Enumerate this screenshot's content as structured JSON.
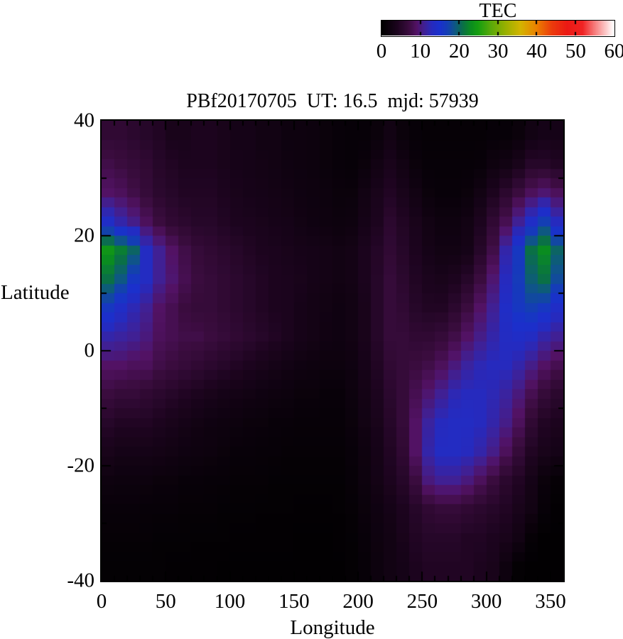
{
  "figure": {
    "title": "PBf20170705  UT: 16.5  mjd: 57939",
    "colorbar": {
      "title": "TEC",
      "min": 0,
      "max": 60,
      "tick_labels": [
        "0",
        "10",
        "20",
        "30",
        "40",
        "50",
        "60"
      ],
      "notch_values": [
        10,
        20,
        30,
        40,
        50
      ]
    },
    "x_axis": {
      "label": "Longitude",
      "min": 0,
      "max": 360,
      "major_ticks": [
        0,
        50,
        100,
        150,
        200,
        250,
        300,
        350
      ],
      "minor_step": 10
    },
    "y_axis": {
      "label": "Latitude",
      "min": -40,
      "max": 40,
      "major_ticks": [
        40,
        20,
        0,
        -20,
        -40
      ],
      "minor_step": 10
    }
  },
  "chart_data": {
    "type": "heatmap",
    "title": "PBf20170705  UT: 16.5  mjd: 57939",
    "xlabel": "Longitude",
    "ylabel": "Latitude",
    "colorbar_label": "TEC",
    "x_range": [
      0,
      360
    ],
    "y_range": [
      -40,
      40
    ],
    "value_range": [
      0,
      60
    ],
    "lon_cell_deg": 10,
    "lat_cell_deg": 5,
    "lon_col_centers": [
      5,
      15,
      25,
      35,
      45,
      55,
      65,
      75,
      85,
      95,
      105,
      115,
      125,
      135,
      145,
      155,
      165,
      175,
      185,
      195,
      205,
      215,
      225,
      235,
      245,
      255,
      265,
      275,
      285,
      295,
      305,
      315,
      325,
      335,
      345,
      355
    ],
    "lat_row_centers_top_to_bottom": [
      37.5,
      32.5,
      27.5,
      22.5,
      17.5,
      12.5,
      7.5,
      2.5,
      -2.5,
      -7.5,
      -12.5,
      -17.5,
      -22.5,
      -27.5,
      -32.5,
      -37.5
    ],
    "tec_grid_rows_top_to_bottom": [
      [
        6,
        6,
        5.5,
        5,
        4.5,
        3.5,
        3.5,
        4,
        4,
        3.5,
        3,
        3,
        2.5,
        2.5,
        2,
        2,
        1.8,
        1.5,
        1.2,
        1,
        1,
        1.5,
        2.5,
        1.5,
        1,
        0.8,
        0.8,
        0.8,
        0.8,
        0.8,
        1,
        1,
        1.5,
        2.5,
        3,
        3
      ],
      [
        7.5,
        7,
        6.5,
        6,
        5,
        4.5,
        4,
        4,
        4,
        3.5,
        3.2,
        3,
        2.8,
        2.5,
        2.2,
        2,
        1.8,
        1.5,
        1.2,
        1,
        1.5,
        2.5,
        3.5,
        2.5,
        1.5,
        1,
        1,
        1,
        1,
        1.2,
        2,
        2.5,
        3.5,
        5,
        5,
        4.5
      ],
      [
        9,
        8.5,
        7.5,
        6.5,
        5.5,
        5,
        4.5,
        4.5,
        4.5,
        4,
        3.5,
        3.2,
        3,
        2.8,
        2.5,
        2.2,
        2,
        1.8,
        1.5,
        1.5,
        2.5,
        3.5,
        4.5,
        3.5,
        2.5,
        1.5,
        1.2,
        1.2,
        1.5,
        2.5,
        4,
        5.5,
        7,
        8.5,
        9.5,
        8.5
      ],
      [
        14,
        12,
        10.5,
        8.5,
        7,
        6,
        5.5,
        5,
        5,
        4.5,
        4,
        3.8,
        3.5,
        3.2,
        3,
        2.5,
        2.2,
        2,
        1.8,
        2,
        3,
        4,
        5.5,
        4.5,
        3.5,
        2.5,
        2,
        2,
        2.5,
        4,
        6,
        8,
        11,
        14,
        17,
        13
      ],
      [
        24,
        22,
        20,
        13.5,
        11,
        9,
        7.5,
        6.5,
        6,
        5.5,
        5,
        4.5,
        4,
        3.8,
        3.5,
        3.2,
        3,
        2.8,
        2.5,
        2.8,
        3.8,
        4.8,
        6,
        5,
        4,
        3,
        2.5,
        2.5,
        3,
        5,
        7.5,
        12,
        16,
        21,
        23,
        20
      ],
      [
        21,
        19,
        16,
        13.5,
        11,
        9.5,
        8,
        7,
        6.5,
        6,
        5.5,
        5,
        4.5,
        4,
        3.8,
        3.5,
        3,
        2.8,
        2.5,
        2.8,
        3.8,
        5,
        6.5,
        5.5,
        4.5,
        3.8,
        3.5,
        4,
        5,
        7,
        9.5,
        13,
        16.5,
        19.5,
        21,
        18
      ],
      [
        16,
        14,
        12.5,
        11,
        9,
        8,
        7,
        6.5,
        6.5,
        6,
        5.5,
        5,
        4.5,
        4,
        3.8,
        3.2,
        2.8,
        2.5,
        2.2,
        2.5,
        3.5,
        5,
        6.5,
        6,
        5,
        4.5,
        4.5,
        5.5,
        7,
        9,
        11,
        14,
        16,
        17,
        16,
        14
      ],
      [
        12,
        11.5,
        11,
        10,
        8.5,
        8,
        7.5,
        7.5,
        7,
        6.5,
        6,
        5.5,
        5,
        4.5,
        3.8,
        3.2,
        2.8,
        2.4,
        2.2,
        2.5,
        3.5,
        5,
        6.5,
        6.5,
        6,
        6,
        6.5,
        7.5,
        9,
        10.5,
        12,
        13.5,
        14,
        13.5,
        12,
        11
      ],
      [
        9,
        9,
        8.5,
        8.5,
        7.5,
        7,
        6.5,
        6,
        5.5,
        5,
        4.5,
        4,
        3.5,
        3,
        2.6,
        2.2,
        2,
        1.8,
        1.8,
        2.2,
        3.2,
        4.5,
        6,
        6.5,
        7,
        7.5,
        8.5,
        10,
        11.5,
        12.5,
        13,
        13,
        12,
        10.5,
        9,
        8
      ],
      [
        7,
        6.5,
        6.5,
        6,
        5.5,
        5,
        4.5,
        4,
        3.5,
        3,
        2.8,
        2.5,
        2.2,
        2,
        1.8,
        1.5,
        1.5,
        1.2,
        1.2,
        1.8,
        2.8,
        4,
        5.5,
        6.5,
        8,
        9.5,
        11,
        12.5,
        13,
        13,
        12.5,
        11.5,
        10,
        8,
        6.5,
        5.5
      ],
      [
        5,
        4.5,
        4.5,
        4.5,
        4,
        3.5,
        3,
        2.5,
        2.2,
        2,
        1.8,
        1.5,
        1.5,
        1.2,
        1.2,
        1,
        1,
        1,
        1,
        1.5,
        2.5,
        3.5,
        5,
        6.5,
        9,
        11.5,
        13,
        13.5,
        13.5,
        13,
        12,
        10.5,
        8.5,
        6,
        4.5,
        4
      ],
      [
        3.5,
        3,
        3,
        3,
        2.8,
        2.5,
        2.2,
        2,
        1.8,
        1.5,
        1.2,
        1.2,
        1,
        1,
        0.8,
        0.8,
        0.8,
        0.8,
        0.8,
        1.2,
        2,
        3,
        4.5,
        6,
        9,
        12,
        13.5,
        13.5,
        13,
        12,
        10.5,
        8.5,
        6.5,
        4.5,
        3.5,
        3
      ],
      [
        2,
        1.8,
        1.8,
        1.8,
        1.5,
        1.5,
        1.2,
        1.2,
        1,
        1,
        0.8,
        0.8,
        0.8,
        0.6,
        0.6,
        0.6,
        0.6,
        0.6,
        0.6,
        1,
        1.8,
        2.8,
        4,
        5,
        7,
        10,
        11,
        11,
        10,
        8.5,
        7,
        5.5,
        4.5,
        3,
        1.5,
        0.8
      ],
      [
        1.2,
        1.2,
        1.2,
        1,
        1,
        1,
        0.8,
        0.8,
        0.8,
        0.6,
        0.6,
        0.6,
        0.5,
        0.5,
        0.5,
        0.4,
        0.4,
        0.4,
        0.5,
        0.8,
        1.5,
        2.2,
        3,
        4,
        5,
        6,
        6.5,
        6.5,
        6,
        5.5,
        5,
        4.5,
        3.5,
        2.5,
        1,
        0.4
      ],
      [
        0.8,
        0.8,
        0.8,
        0.8,
        0.6,
        0.6,
        0.6,
        0.5,
        0.5,
        0.5,
        0.4,
        0.4,
        0.4,
        0.4,
        0.4,
        0.3,
        0.3,
        0.3,
        0.4,
        0.6,
        1.2,
        2,
        2.5,
        3.5,
        4.5,
        5,
        5,
        5,
        4.5,
        4.5,
        4,
        3.5,
        2.5,
        0.8,
        0.3,
        0.3
      ],
      [
        0.5,
        0.5,
        0.5,
        0.5,
        0.5,
        0.4,
        0.4,
        0.4,
        0.4,
        0.3,
        0.3,
        0.3,
        0.3,
        0.3,
        0.3,
        0.3,
        0.3,
        0.3,
        0.3,
        0.5,
        1,
        1.8,
        2.5,
        3,
        4,
        4.5,
        4.5,
        4.5,
        4.5,
        4,
        3.5,
        2,
        0.5,
        0.3,
        0.3,
        0.3
      ]
    ],
    "colormap_stops": [
      [
        0,
        0,
        0,
        0
      ],
      [
        4,
        28,
        4,
        30
      ],
      [
        7,
        58,
        12,
        62
      ],
      [
        9,
        82,
        18,
        100
      ],
      [
        11,
        64,
        32,
        148
      ],
      [
        13,
        38,
        42,
        190
      ],
      [
        15,
        26,
        48,
        205
      ],
      [
        17,
        20,
        62,
        180
      ],
      [
        19,
        14,
        88,
        130
      ],
      [
        21,
        10,
        112,
        70
      ],
      [
        23,
        10,
        140,
        32
      ],
      [
        25,
        22,
        158,
        16
      ],
      [
        28,
        84,
        168,
        10
      ],
      [
        32,
        152,
        176,
        0
      ],
      [
        36,
        212,
        180,
        0
      ],
      [
        40,
        235,
        130,
        0
      ],
      [
        44,
        235,
        60,
        12
      ],
      [
        48,
        235,
        25,
        20
      ],
      [
        52,
        240,
        35,
        35
      ],
      [
        55,
        246,
        120,
        120
      ],
      [
        58,
        252,
        200,
        200
      ],
      [
        60,
        255,
        255,
        255
      ]
    ]
  }
}
